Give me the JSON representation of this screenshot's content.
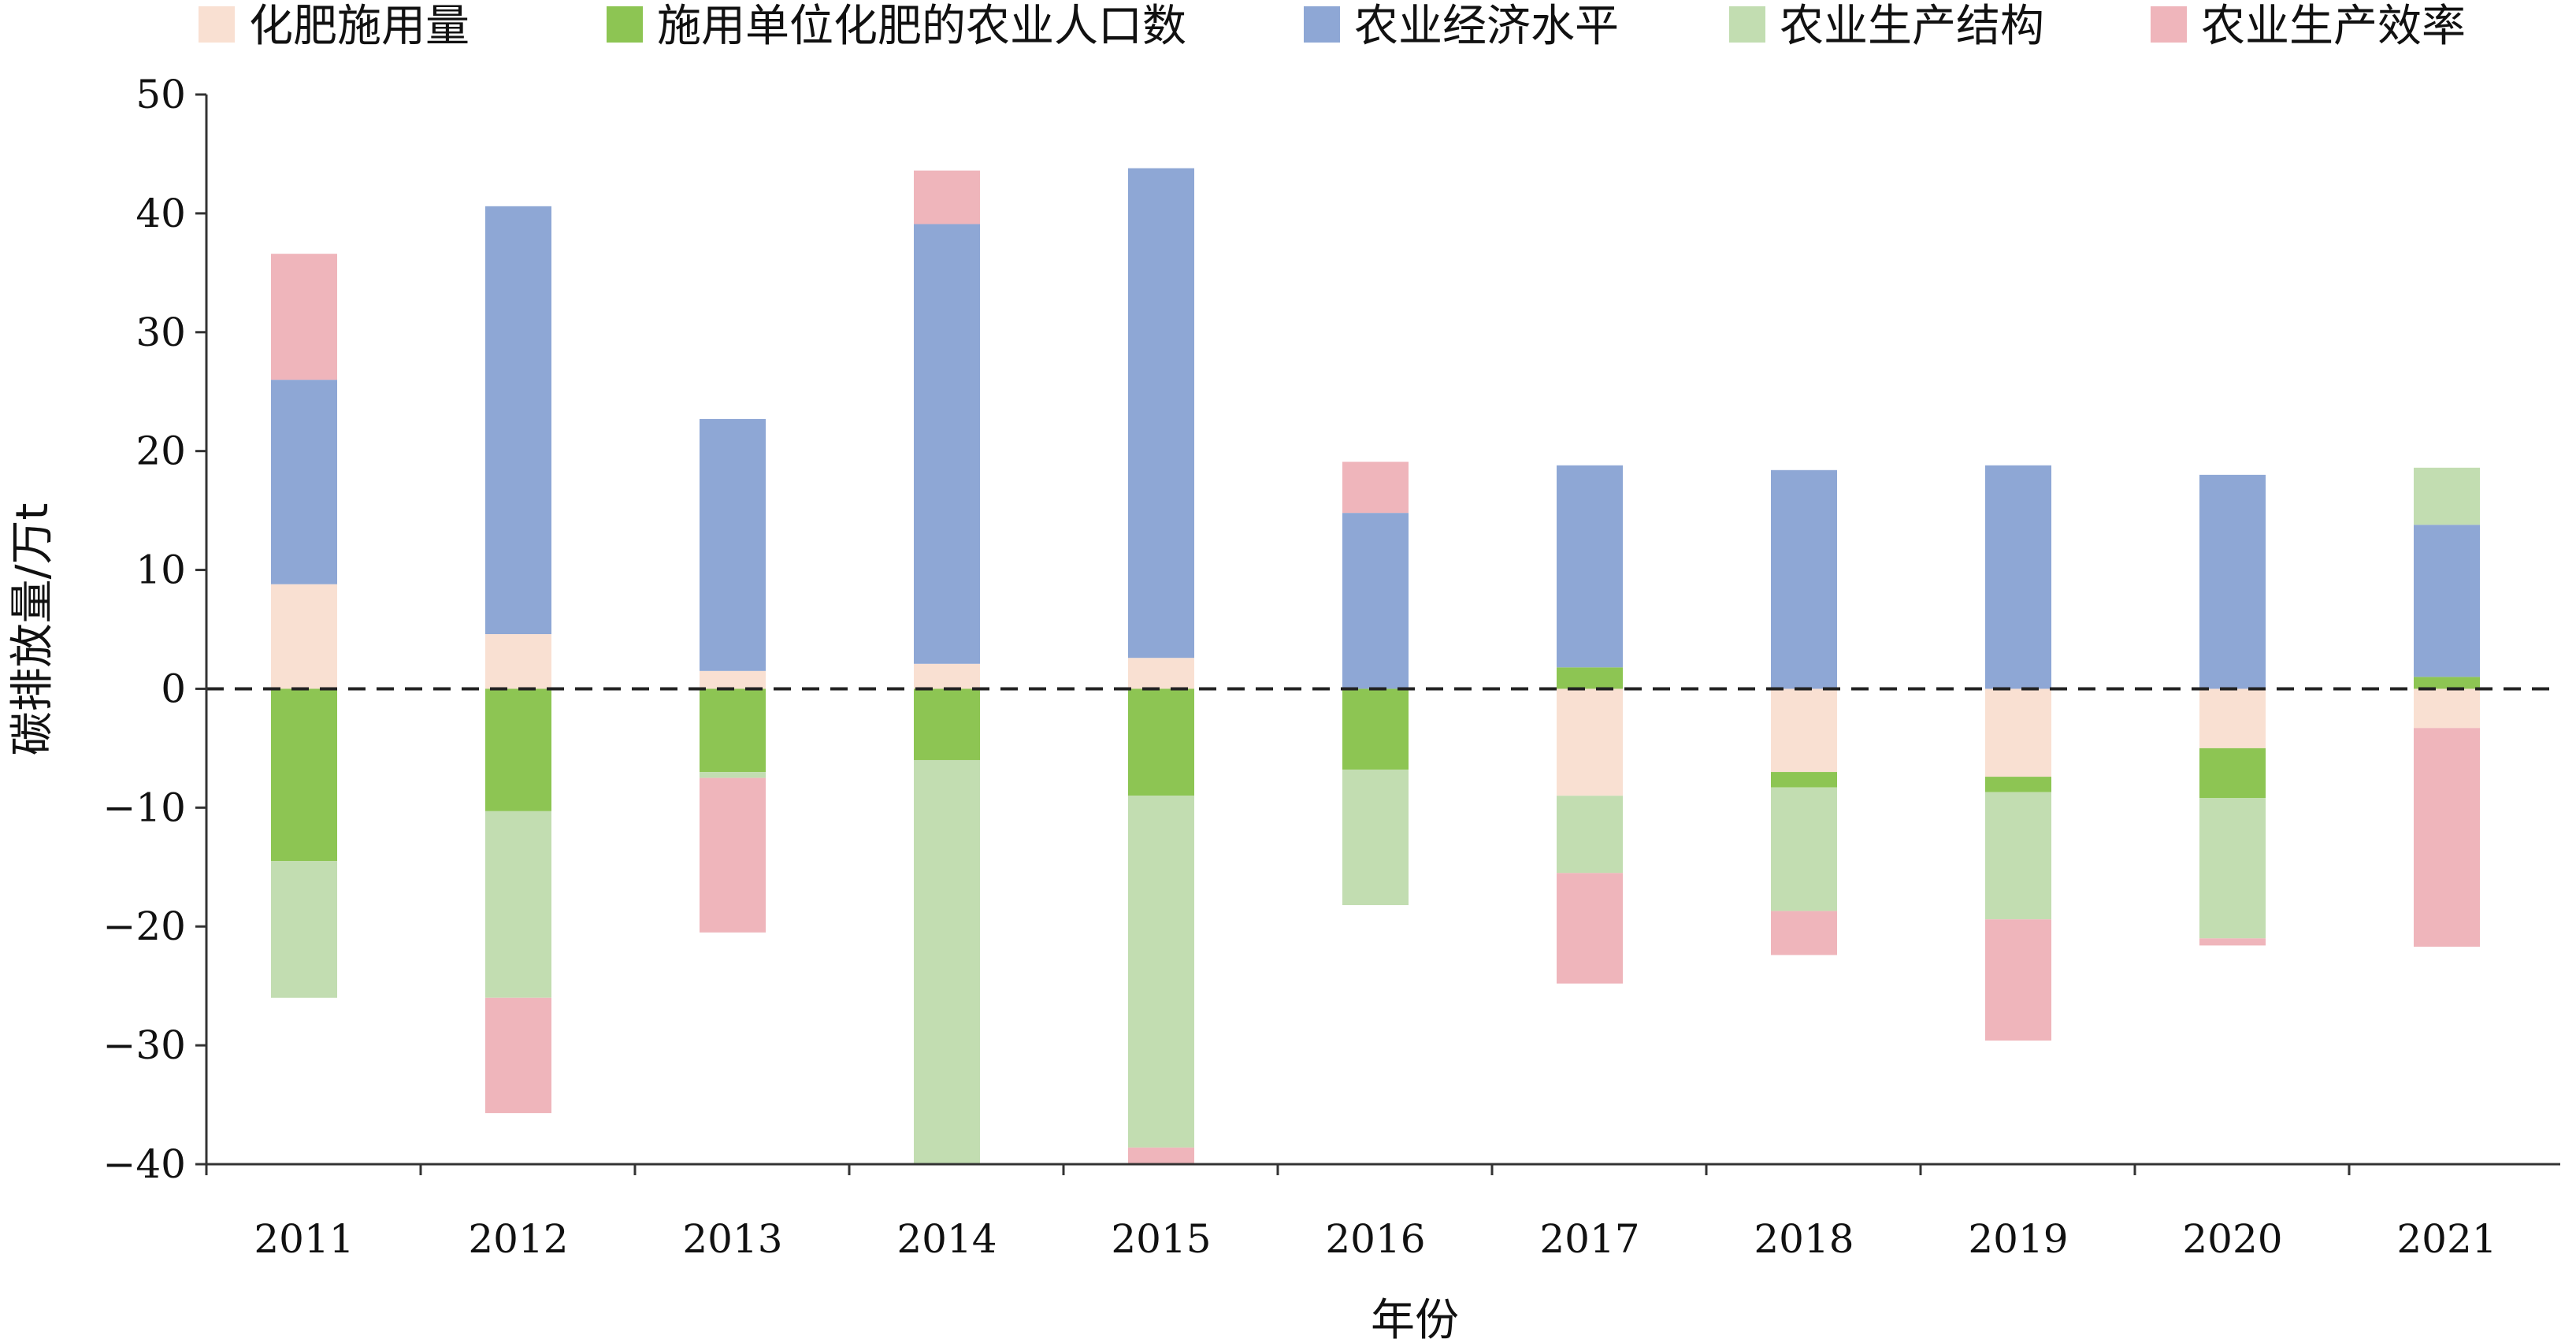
{
  "chart_data": {
    "type": "bar",
    "stacked": true,
    "title": "",
    "xlabel": "年份",
    "ylabel": "碳排放量/万t",
    "ylim": [
      -40,
      50
    ],
    "yticks": [
      50,
      40,
      30,
      20,
      10,
      0,
      -10,
      -20,
      -30,
      -40
    ],
    "grid": false,
    "zero_line": "dashed",
    "legend_position": "top",
    "categories": [
      "2011",
      "2012",
      "2013",
      "2014",
      "2015",
      "2016",
      "2017",
      "2018",
      "2019",
      "2020",
      "2021"
    ],
    "series": [
      {
        "name": "化肥施用量",
        "color": "#f9e0d2",
        "values": [
          8.8,
          4.6,
          1.5,
          2.1,
          2.6,
          0,
          -9,
          -7,
          -7.4,
          -5,
          -3.3
        ]
      },
      {
        "name": "施用单位化肥的农业人口数",
        "color": "#8dc553",
        "values": [
          -14.5,
          -10.3,
          -7,
          -6,
          -9,
          -6.8,
          1.8,
          -1.3,
          -1.3,
          -4.2,
          1
        ]
      },
      {
        "name": "农业经济水平",
        "color": "#8ea7d5",
        "values": [
          17.2,
          36,
          21.2,
          37,
          41.2,
          14.8,
          17,
          18.4,
          18.8,
          18,
          12.8
        ]
      },
      {
        "name": "农业生产结构",
        "color": "#c2ddb1",
        "values": [
          -11.5,
          -15.7,
          -0.5,
          -34,
          -29.6,
          -11.4,
          -6.5,
          -10.4,
          -10.7,
          -11.8,
          4.8
        ]
      },
      {
        "name": "农业生产效率",
        "color": "#efb5bb",
        "values": [
          10.6,
          -9.7,
          -13,
          4.5,
          -1.6,
          4.3,
          -9.3,
          -3.7,
          -10.2,
          -0.6,
          -18.4
        ]
      }
    ]
  }
}
